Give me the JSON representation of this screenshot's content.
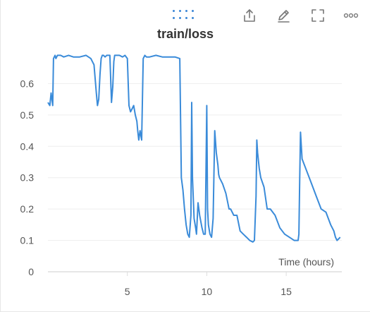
{
  "toolbar": {
    "drag_icon": "drag-handle-icon",
    "export_icon": "share-upload-icon",
    "edit_icon": "pencil-icon",
    "expand_icon": "fullscreen-icon",
    "more_icon": "more-horizontal-icon"
  },
  "colors": {
    "series": "#3a8bd9",
    "accent": "#3b86d6",
    "grid": "#eeeeee",
    "axis": "#dddddd"
  },
  "chart_data": {
    "type": "line",
    "title": "train/loss",
    "xlabel": "Time (hours)",
    "ylabel": "",
    "xlim": [
      0,
      18.5
    ],
    "ylim": [
      0,
      0.7
    ],
    "x_ticks": [
      5,
      10,
      15
    ],
    "y_ticks": [
      0,
      0.1,
      0.2,
      0.3,
      0.4,
      0.5,
      0.6
    ],
    "x_tick_labels": [
      "5",
      "10",
      "15"
    ],
    "y_tick_labels": [
      "0",
      "0.1",
      "0.2",
      "0.3",
      "0.4",
      "0.5",
      "0.6"
    ],
    "grid": true,
    "legend": "none",
    "series": [
      {
        "color": "#3a8bd9",
        "x": [
          0,
          0.12,
          0.2,
          0.3,
          0.35,
          0.45,
          0.5,
          0.6,
          0.8,
          1.0,
          1.3,
          1.6,
          2.0,
          2.4,
          2.7,
          2.9,
          3.05,
          3.12,
          3.2,
          3.28,
          3.35,
          3.42,
          3.5,
          3.6,
          3.7,
          3.9,
          4.0,
          4.08,
          4.15,
          4.2,
          4.28,
          4.35,
          4.5,
          4.7,
          4.85,
          5.0,
          5.1,
          5.2,
          5.3,
          5.4,
          5.5,
          5.6,
          5.65,
          5.72,
          5.8,
          5.9,
          6.0,
          6.1,
          6.2,
          6.4,
          6.8,
          7.2,
          7.6,
          8.0,
          8.3,
          8.4,
          8.5,
          8.6,
          8.7,
          8.8,
          8.9,
          9.0,
          9.05,
          9.1,
          9.2,
          9.3,
          9.35,
          9.45,
          9.55,
          9.7,
          9.8,
          9.9,
          10.0,
          10.05,
          10.1,
          10.2,
          10.3,
          10.4,
          10.5,
          10.6,
          10.7,
          10.75,
          10.8,
          10.9,
          11.0,
          11.2,
          11.4,
          11.5,
          11.7,
          11.9,
          12.1,
          12.3,
          12.5,
          12.7,
          12.9,
          13.0,
          13.1,
          13.15,
          13.2,
          13.3,
          13.4,
          13.6,
          13.8,
          14.0,
          14.3,
          14.6,
          14.9,
          15.2,
          15.5,
          15.7,
          15.75,
          15.8,
          15.85,
          15.9,
          16.0,
          16.3,
          16.6,
          16.9,
          17.2,
          17.5,
          17.8,
          18.0,
          18.1,
          18.2,
          18.3,
          18.4
        ],
        "y": [
          0.54,
          0.53,
          0.57,
          0.53,
          0.68,
          0.69,
          0.68,
          0.69,
          0.69,
          0.685,
          0.69,
          0.685,
          0.685,
          0.69,
          0.68,
          0.66,
          0.57,
          0.53,
          0.55,
          0.63,
          0.68,
          0.69,
          0.69,
          0.685,
          0.69,
          0.69,
          0.54,
          0.59,
          0.67,
          0.69,
          0.69,
          0.69,
          0.69,
          0.685,
          0.69,
          0.68,
          0.53,
          0.51,
          0.52,
          0.53,
          0.5,
          0.48,
          0.45,
          0.42,
          0.45,
          0.42,
          0.68,
          0.69,
          0.685,
          0.685,
          0.69,
          0.685,
          0.685,
          0.685,
          0.68,
          0.3,
          0.26,
          0.2,
          0.15,
          0.12,
          0.11,
          0.18,
          0.54,
          0.3,
          0.17,
          0.14,
          0.12,
          0.22,
          0.18,
          0.14,
          0.12,
          0.12,
          0.53,
          0.2,
          0.15,
          0.12,
          0.11,
          0.17,
          0.45,
          0.38,
          0.34,
          0.31,
          0.3,
          0.29,
          0.28,
          0.25,
          0.2,
          0.2,
          0.18,
          0.18,
          0.13,
          0.12,
          0.11,
          0.1,
          0.095,
          0.1,
          0.24,
          0.42,
          0.38,
          0.33,
          0.3,
          0.27,
          0.2,
          0.2,
          0.18,
          0.14,
          0.12,
          0.11,
          0.1,
          0.1,
          0.1,
          0.12,
          0.3,
          0.445,
          0.36,
          0.32,
          0.28,
          0.24,
          0.2,
          0.19,
          0.15,
          0.13,
          0.11,
          0.1,
          0.105,
          0.11
        ]
      }
    ]
  }
}
